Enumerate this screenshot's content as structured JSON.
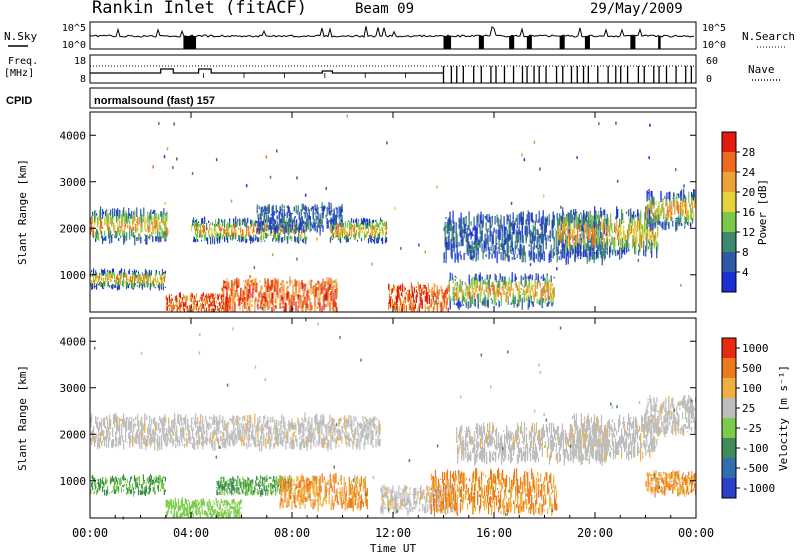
{
  "header": {
    "station": "Rankin Inlet (fitACF)",
    "beam": "Beam 09",
    "date": "29/May/2009"
  },
  "top_panels": {
    "nsky_label": "N.Sky",
    "nsky_ticks": [
      "10^5",
      "10^0"
    ],
    "nsearch_label": "N.Search",
    "nsearch_ticks": [
      "10^5",
      "10^0"
    ],
    "freq_label": "Freq.",
    "freq_unit": "[MHz]",
    "freq_ticks": [
      "18",
      "8"
    ],
    "nave_label": "Nave",
    "nave_ticks": [
      "60",
      "0"
    ],
    "cpid_label": "CPID",
    "cpid_text": "normalsound (fast) 157"
  },
  "chart_data": [
    {
      "type": "heatmap",
      "name": "power",
      "ylabel": "Slant Range [km]",
      "ylim": [
        200,
        4500
      ],
      "yticks": [
        1000,
        2000,
        3000,
        4000
      ],
      "colorbar": {
        "label": "Power [dB]",
        "ticks": [
          4,
          8,
          12,
          16,
          20,
          24,
          28
        ],
        "colors": [
          "#1a2fd6",
          "#2f5aa8",
          "#3e8a6e",
          "#7cc84a",
          "#e6d23c",
          "#f0a23a",
          "#ee6a1e",
          "#e21a10"
        ]
      },
      "bands": [
        {
          "t0": 0.0,
          "t1": 3.1,
          "r0": 1700,
          "r1": 2400,
          "level": "mid"
        },
        {
          "t0": 0.0,
          "t1": 3.0,
          "r0": 700,
          "r1": 1100,
          "level": "mid"
        },
        {
          "t0": 3.0,
          "t1": 5.5,
          "r0": 200,
          "r1": 600,
          "level": "high"
        },
        {
          "t0": 4.0,
          "t1": 8.6,
          "r0": 1700,
          "r1": 2200,
          "level": "mid"
        },
        {
          "t0": 5.2,
          "t1": 9.8,
          "r0": 200,
          "r1": 900,
          "level": "high"
        },
        {
          "t0": 6.6,
          "t1": 10.0,
          "r0": 1900,
          "r1": 2500,
          "level": "low"
        },
        {
          "t0": 9.5,
          "t1": 11.8,
          "r0": 1700,
          "r1": 2200,
          "level": "mid"
        },
        {
          "t0": 11.8,
          "t1": 14.2,
          "r0": 200,
          "r1": 800,
          "level": "high"
        },
        {
          "t0": 14.2,
          "t1": 18.4,
          "r0": 300,
          "r1": 1000,
          "level": "mid"
        },
        {
          "t0": 14.0,
          "t1": 20.5,
          "r0": 1300,
          "r1": 2300,
          "level": "low"
        },
        {
          "t0": 18.5,
          "t1": 22.5,
          "r0": 1400,
          "r1": 2400,
          "level": "mid"
        },
        {
          "t0": 22.0,
          "t1": 24.0,
          "r0": 2000,
          "r1": 2800,
          "level": "mid"
        }
      ]
    },
    {
      "type": "heatmap",
      "name": "velocity",
      "ylabel": "Slant Range [km]",
      "xlabel": "Time UT",
      "ylim": [
        200,
        4500
      ],
      "yticks": [
        1000,
        2000,
        3000,
        4000
      ],
      "xticks": [
        "00:00",
        "04:00",
        "08:00",
        "12:00",
        "16:00",
        "20:00",
        "00:00"
      ],
      "colorbar": {
        "label": "Velocity [m s⁻¹]",
        "ticks": [
          "1000",
          "500",
          "100",
          "25",
          "-25",
          "-100",
          "-500",
          "-1000"
        ],
        "colors": [
          "#2a40c8",
          "#2f6fae",
          "#3e8a5a",
          "#7ccc4a",
          "#bdbdbd",
          "#f0b040",
          "#ee7a20",
          "#e82a10"
        ]
      },
      "bands": [
        {
          "t0": 0.0,
          "t1": 11.5,
          "r0": 1700,
          "r1": 2400,
          "level": "ground"
        },
        {
          "t0": 0.0,
          "t1": 3.0,
          "r0": 700,
          "r1": 1100,
          "level": "slowpos"
        },
        {
          "t0": 3.0,
          "t1": 6.0,
          "r0": 200,
          "r1": 600,
          "level": "green"
        },
        {
          "t0": 5.0,
          "t1": 8.0,
          "r0": 700,
          "r1": 1100,
          "level": "slowpos"
        },
        {
          "t0": 7.5,
          "t1": 11.0,
          "r0": 400,
          "r1": 1100,
          "level": "neg"
        },
        {
          "t0": 11.5,
          "t1": 14.5,
          "r0": 300,
          "r1": 900,
          "level": "ground"
        },
        {
          "t0": 13.5,
          "t1": 18.5,
          "r0": 300,
          "r1": 1200,
          "level": "neg"
        },
        {
          "t0": 14.5,
          "t1": 20.5,
          "r0": 1400,
          "r1": 2200,
          "level": "ground"
        },
        {
          "t0": 19.0,
          "t1": 22.5,
          "r0": 1500,
          "r1": 2400,
          "level": "ground"
        },
        {
          "t0": 22.0,
          "t1": 24.0,
          "r0": 2000,
          "r1": 2800,
          "level": "ground"
        },
        {
          "t0": 22.0,
          "t1": 24.0,
          "r0": 700,
          "r1": 1200,
          "level": "neg"
        }
      ]
    }
  ]
}
